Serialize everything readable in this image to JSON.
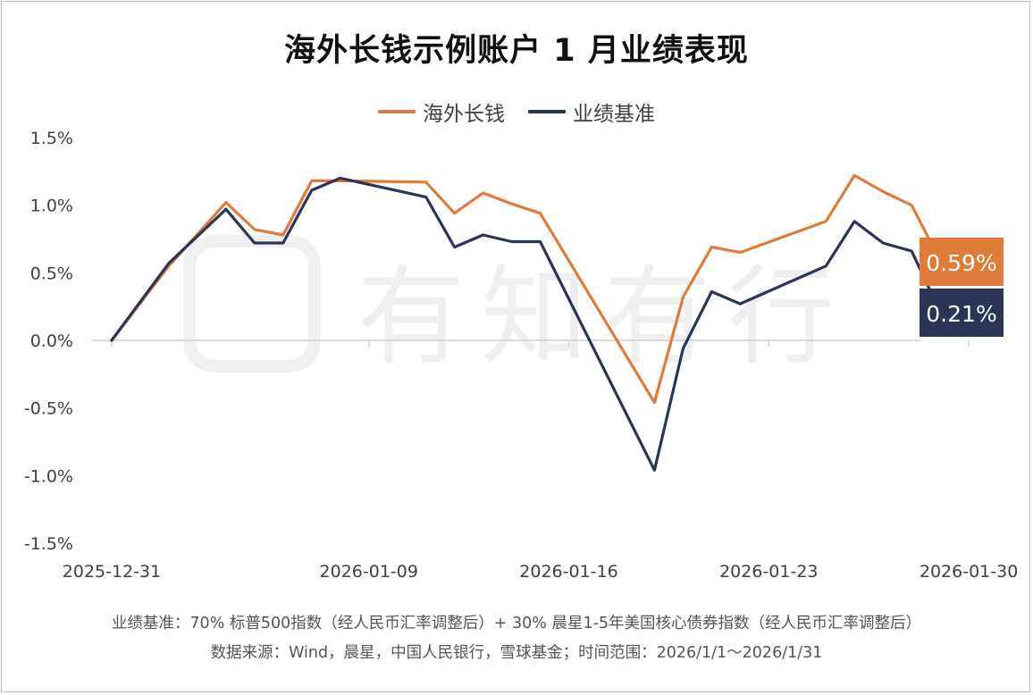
{
  "title": "海外长钱示例账户 1 月业绩表现",
  "legend": [
    {
      "name": "海外长钱",
      "color": "#E07B39"
    },
    {
      "name": "业绩基准",
      "color": "#2A3558"
    }
  ],
  "watermark": "有知有行",
  "footnotes": {
    "line1": "业绩基准：70% 标普500指数（经人民币汇率调整后）+ 30% 晨星1-5年美国核心债券指数（经人民币汇率调整后）",
    "line2": "数据来源：Wind，晨星，中国人民银行，雪球基金；时间范围：2026/1/1～2026/1/31"
  },
  "chart_data": {
    "type": "line",
    "x": [
      "2025-12-31",
      "2026-01-02",
      "2026-01-05",
      "2026-01-06",
      "2026-01-07",
      "2026-01-08",
      "2026-01-09",
      "2026-01-12",
      "2026-01-13",
      "2026-01-14",
      "2026-01-15",
      "2026-01-16",
      "2026-01-20",
      "2026-01-21",
      "2026-01-22",
      "2026-01-23",
      "2026-01-26",
      "2026-01-27",
      "2026-01-28",
      "2026-01-29",
      "2026-01-30"
    ],
    "x_plot_index": [
      0,
      2,
      4,
      5,
      6,
      7,
      8,
      11,
      12,
      13,
      14,
      15,
      19,
      20,
      21,
      22,
      25,
      26,
      27,
      28,
      29
    ],
    "x_ticks": [
      {
        "label": "2025-12-31",
        "index": 0
      },
      {
        "label": "2026-01-09",
        "index": 9
      },
      {
        "label": "2026-01-16",
        "index": 16
      },
      {
        "label": "2026-01-23",
        "index": 23
      },
      {
        "label": "2026-01-30",
        "index": 30
      }
    ],
    "y_ticks": [
      "1.5%",
      "1.0%",
      "0.5%",
      "0.0%",
      "-0.5%",
      "-1.0%",
      "-1.5%"
    ],
    "ylim": [
      -1.5,
      1.5
    ],
    "y_unit": "%",
    "series": [
      {
        "name": "海外长钱",
        "color": "#E07B39",
        "values": [
          0.0,
          0.55,
          1.02,
          0.82,
          0.78,
          1.18,
          1.18,
          1.17,
          0.94,
          1.09,
          1.01,
          0.94,
          -0.46,
          0.32,
          0.69,
          0.65,
          0.88,
          1.22,
          1.1,
          1.0,
          0.59
        ]
      },
      {
        "name": "业绩基准",
        "color": "#2A3558",
        "values": [
          0.0,
          0.57,
          0.97,
          0.72,
          0.72,
          1.11,
          1.2,
          1.06,
          0.69,
          0.78,
          0.73,
          0.73,
          -0.96,
          -0.06,
          0.36,
          0.27,
          0.55,
          0.88,
          0.72,
          0.66,
          0.21
        ]
      }
    ],
    "end_labels": [
      {
        "series": "海外长钱",
        "text": "0.59%",
        "bg": "#E07B39"
      },
      {
        "series": "业绩基准",
        "text": "0.21%",
        "bg": "#2A3558"
      }
    ],
    "grid": false,
    "legend_position": "top-center"
  }
}
